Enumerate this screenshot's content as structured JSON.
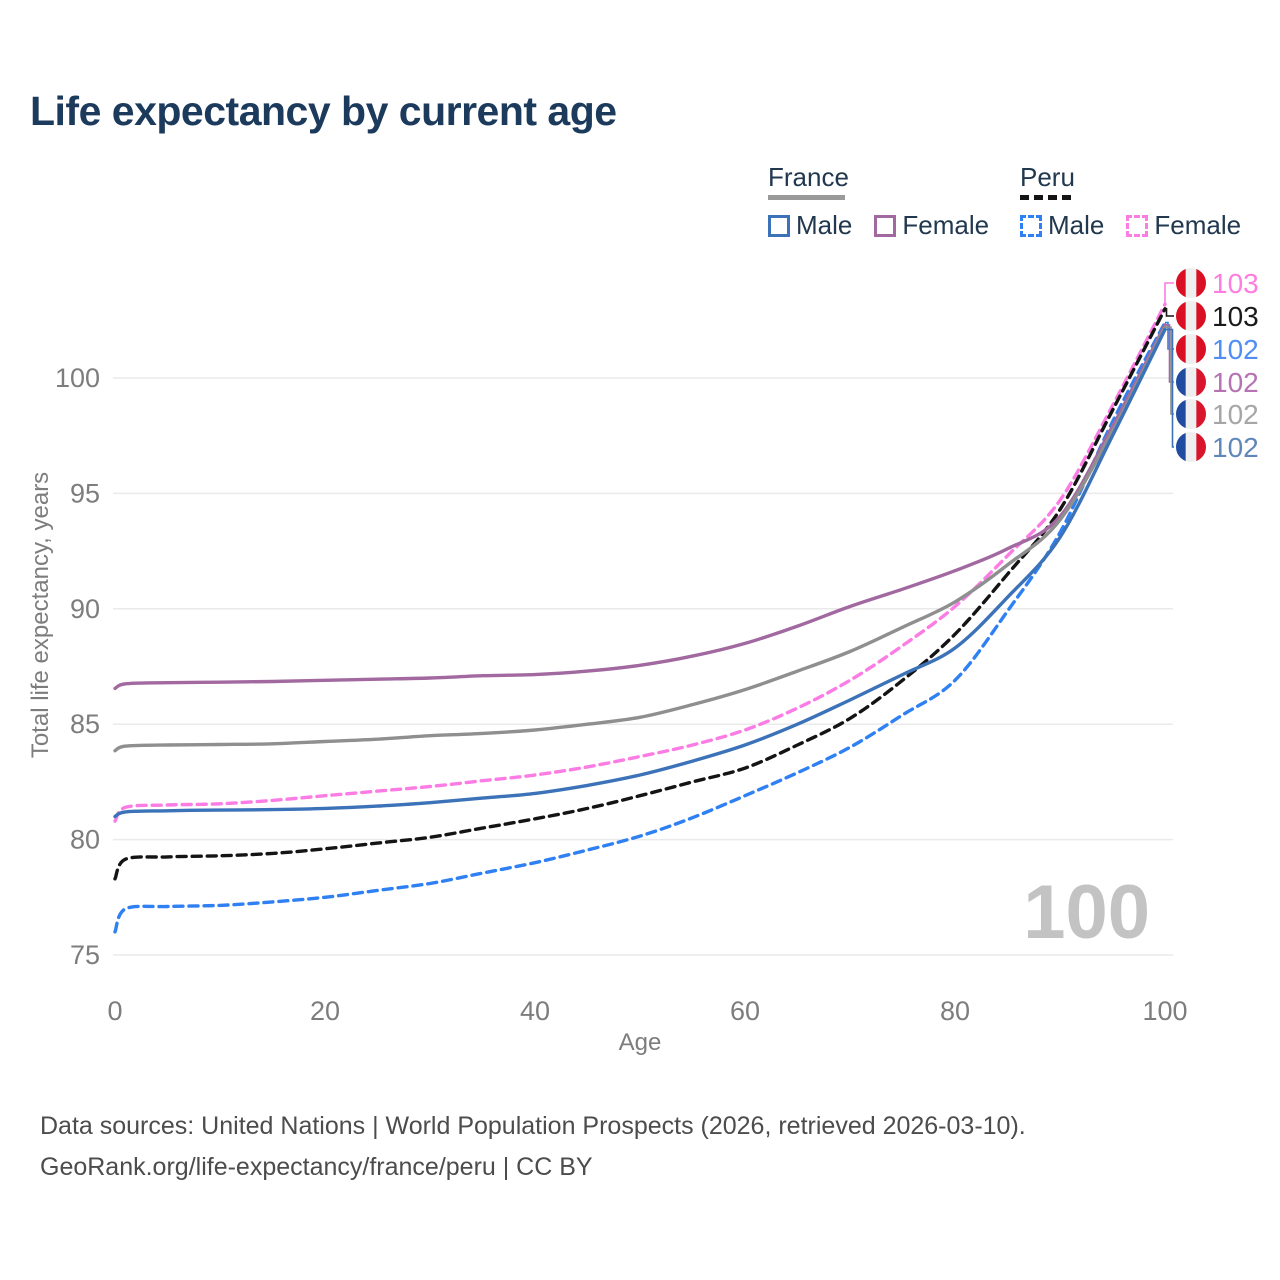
{
  "title": "Life expectancy by current age",
  "legend": {
    "france": {
      "label": "France",
      "male": "Male",
      "female": "Female"
    },
    "peru": {
      "label": "Peru",
      "male": "Male",
      "female": "Female"
    }
  },
  "watermark_age": "100",
  "footer": {
    "line1": "Data sources: United Nations | World Population Prospects (2026, retrieved 2026-03-10).",
    "line2": "GeoRank.org/life-expectancy/france/peru | CC BY"
  },
  "colors": {
    "title_text": "#1c3a5c",
    "legend_text": "#22384f",
    "axis_text": "#7d7d7d",
    "gridline": "#eaeaea",
    "watermark": "#c3c3c3",
    "footer_text": "#4c4c4c",
    "flag_peru": [
      "#d91023",
      "#efefef",
      "#d91023"
    ],
    "flag_france": [
      "#1f4ba0",
      "#efefef",
      "#d8152d"
    ]
  },
  "chart_data": {
    "type": "line",
    "title": "Life expectancy by current age",
    "xlabel": "Age",
    "ylabel": "Total life expectancy, years",
    "xlim": [
      0,
      100
    ],
    "ylim": [
      75,
      103.5
    ],
    "xticks": [
      0,
      20,
      40,
      60,
      80,
      100
    ],
    "yticks": [
      75,
      80,
      85,
      90,
      95,
      100
    ],
    "grid": "horizontal-only",
    "legend_position": "top-right",
    "current_age_frame": 100,
    "x": [
      0,
      1,
      5,
      10,
      15,
      20,
      25,
      30,
      35,
      40,
      45,
      50,
      55,
      60,
      65,
      70,
      75,
      80,
      85,
      90,
      95,
      100
    ],
    "series": [
      {
        "name": "Peru Female",
        "country": "Peru",
        "sex": "Female",
        "line": "dashed",
        "color": "#fb7ce4",
        "end_label": "103",
        "end_label_color": "#ff7ce0",
        "flag": "peru",
        "values": [
          80.8,
          81.4,
          81.5,
          81.55,
          81.7,
          81.9,
          82.1,
          82.3,
          82.55,
          82.8,
          83.15,
          83.6,
          84.1,
          84.75,
          85.7,
          86.9,
          88.4,
          90.1,
          92.3,
          94.7,
          98.8,
          103.2
        ]
      },
      {
        "name": "Peru Both sexes",
        "country": "Peru",
        "sex": "Both",
        "line": "dashed",
        "color": "#141414",
        "end_label": "103",
        "end_label_color": "#1a1a1a",
        "flag": "peru",
        "values": [
          78.3,
          79.15,
          79.25,
          79.3,
          79.4,
          79.6,
          79.85,
          80.1,
          80.5,
          80.9,
          81.35,
          81.9,
          82.5,
          83.1,
          84.1,
          85.25,
          86.9,
          88.9,
          91.5,
          94.3,
          98.6,
          103.0
        ]
      },
      {
        "name": "Peru Male",
        "country": "Peru",
        "sex": "Male",
        "line": "dashed",
        "color": "#2f80f2",
        "end_label": "102",
        "end_label_color": "#4f8ef5",
        "flag": "peru",
        "values": [
          76.0,
          77.0,
          77.1,
          77.15,
          77.3,
          77.5,
          77.8,
          78.1,
          78.55,
          79.0,
          79.55,
          80.15,
          80.95,
          81.9,
          82.9,
          84.0,
          85.4,
          86.9,
          89.9,
          93.3,
          98.1,
          102.4
        ]
      },
      {
        "name": "France Female",
        "country": "France",
        "sex": "Female",
        "line": "solid",
        "color": "#a268a0",
        "end_label": "102",
        "end_label_color": "#b573b3",
        "flag": "france",
        "values": [
          86.55,
          86.75,
          86.8,
          86.82,
          86.85,
          86.9,
          86.95,
          87.0,
          87.1,
          87.15,
          87.3,
          87.55,
          87.95,
          88.5,
          89.25,
          90.1,
          90.85,
          91.65,
          92.6,
          94.0,
          97.9,
          102.3
        ]
      },
      {
        "name": "France Both sexes",
        "country": "France",
        "sex": "Both",
        "line": "solid",
        "color": "#8f8f8f",
        "end_label": "102",
        "end_label_color": "#a6a6a6",
        "flag": "france",
        "values": [
          83.85,
          84.05,
          84.1,
          84.12,
          84.15,
          84.25,
          84.35,
          84.5,
          84.6,
          84.75,
          85.0,
          85.3,
          85.85,
          86.5,
          87.3,
          88.15,
          89.2,
          90.3,
          91.9,
          93.85,
          97.7,
          102.2
        ]
      },
      {
        "name": "France Male",
        "country": "France",
        "sex": "Male",
        "line": "solid",
        "color": "#3c72b8",
        "end_label": "102",
        "end_label_color": "#5f87ba",
        "flag": "france",
        "values": [
          81.0,
          81.2,
          81.25,
          81.28,
          81.3,
          81.35,
          81.45,
          81.6,
          81.8,
          82.0,
          82.35,
          82.8,
          83.4,
          84.1,
          85.0,
          86.05,
          87.15,
          88.3,
          90.5,
          93.1,
          97.5,
          102.1
        ]
      }
    ]
  }
}
